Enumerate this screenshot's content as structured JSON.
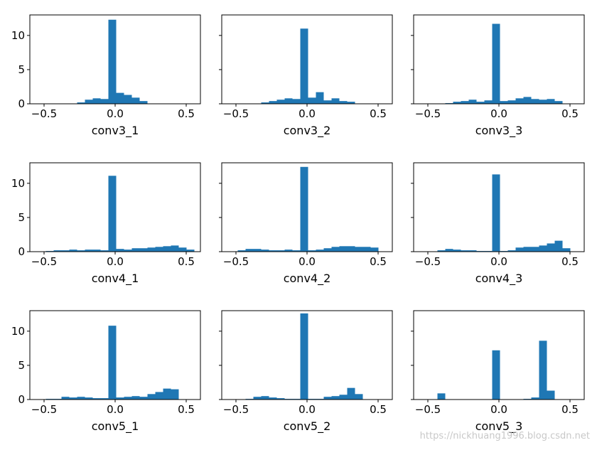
{
  "watermark": "https://nickhuang1996.blog.csdn.net",
  "chart_data": [
    {
      "type": "bar",
      "xlabel": "conv3_1",
      "xlim": [
        -0.6,
        0.6
      ],
      "ylim": [
        0,
        13
      ],
      "xticks": [
        -0.5,
        0.0,
        0.5
      ],
      "xtick_labels": [
        "−0.5",
        "0.0",
        "0.5"
      ],
      "yticks": [
        0,
        5,
        10
      ],
      "ytick_labels": [
        "0",
        "5",
        "10"
      ],
      "bin_width": 0.055,
      "color": "#1f77b4",
      "centers": [
        -0.24,
        -0.185,
        -0.13,
        -0.075,
        -0.02,
        0.035,
        0.09,
        0.145,
        0.2
      ],
      "values": [
        0.2,
        0.6,
        0.8,
        0.7,
        12.3,
        1.6,
        1.3,
        0.9,
        0.4
      ]
    },
    {
      "type": "bar",
      "xlabel": "conv3_2",
      "xlim": [
        -0.6,
        0.6
      ],
      "ylim": [
        0,
        13
      ],
      "xticks": [
        -0.5,
        0.0,
        0.5
      ],
      "xtick_labels": [
        "−0.5",
        "0.0",
        "0.5"
      ],
      "yticks": [
        0,
        5,
        10
      ],
      "ytick_labels": [
        "",
        "",
        ""
      ],
      "bin_width": 0.055,
      "color": "#1f77b4",
      "centers": [
        -0.295,
        -0.24,
        -0.185,
        -0.13,
        -0.075,
        -0.02,
        0.035,
        0.09,
        0.145,
        0.2,
        0.255,
        0.31
      ],
      "values": [
        0.2,
        0.4,
        0.6,
        0.8,
        0.7,
        11.0,
        0.9,
        1.7,
        0.5,
        0.8,
        0.4,
        0.3
      ]
    },
    {
      "type": "bar",
      "xlabel": "conv3_3",
      "xlim": [
        -0.6,
        0.6
      ],
      "ylim": [
        0,
        13
      ],
      "xticks": [
        -0.5,
        0.0,
        0.5
      ],
      "xtick_labels": [
        "−0.5",
        "0.0",
        "0.5"
      ],
      "yticks": [
        0,
        5,
        10
      ],
      "ytick_labels": [
        "",
        "",
        ""
      ],
      "bin_width": 0.055,
      "color": "#1f77b4",
      "centers": [
        -0.35,
        -0.295,
        -0.24,
        -0.185,
        -0.13,
        -0.075,
        -0.02,
        0.035,
        0.09,
        0.145,
        0.2,
        0.255,
        0.31,
        0.365,
        0.42
      ],
      "values": [
        0.1,
        0.3,
        0.4,
        0.6,
        0.3,
        0.5,
        11.7,
        0.4,
        0.5,
        0.8,
        1.0,
        0.7,
        0.6,
        0.7,
        0.4
      ]
    },
    {
      "type": "bar",
      "xlabel": "conv4_1",
      "xlim": [
        -0.6,
        0.6
      ],
      "ylim": [
        0,
        13
      ],
      "xticks": [
        -0.5,
        0.0,
        0.5
      ],
      "xtick_labels": [
        "−0.5",
        "0.0",
        "0.5"
      ],
      "yticks": [
        0,
        5,
        10
      ],
      "ytick_labels": [
        "0",
        "5",
        "10"
      ],
      "bin_width": 0.055,
      "color": "#1f77b4",
      "centers": [
        -0.46,
        -0.405,
        -0.35,
        -0.295,
        -0.24,
        -0.185,
        -0.13,
        -0.075,
        -0.02,
        0.035,
        0.09,
        0.145,
        0.2,
        0.255,
        0.31,
        0.365,
        0.42,
        0.475,
        0.53
      ],
      "values": [
        0.1,
        0.2,
        0.2,
        0.3,
        0.2,
        0.3,
        0.3,
        0.2,
        11.1,
        0.4,
        0.3,
        0.5,
        0.5,
        0.6,
        0.7,
        0.8,
        0.9,
        0.6,
        0.3
      ]
    },
    {
      "type": "bar",
      "xlabel": "conv4_2",
      "xlim": [
        -0.6,
        0.6
      ],
      "ylim": [
        0,
        13
      ],
      "xticks": [
        -0.5,
        0.0,
        0.5
      ],
      "xtick_labels": [
        "−0.5",
        "0.0",
        "0.5"
      ],
      "yticks": [
        0,
        5,
        10
      ],
      "ytick_labels": [
        "",
        "",
        ""
      ],
      "bin_width": 0.055,
      "color": "#1f77b4",
      "centers": [
        -0.46,
        -0.405,
        -0.35,
        -0.295,
        -0.24,
        -0.185,
        -0.13,
        -0.075,
        -0.02,
        0.035,
        0.09,
        0.145,
        0.2,
        0.255,
        0.31,
        0.365,
        0.42,
        0.475
      ],
      "values": [
        0.2,
        0.4,
        0.4,
        0.3,
        0.2,
        0.2,
        0.3,
        0.2,
        12.4,
        0.2,
        0.3,
        0.5,
        0.7,
        0.8,
        0.8,
        0.7,
        0.7,
        0.6
      ]
    },
    {
      "type": "bar",
      "xlabel": "conv4_3",
      "xlim": [
        -0.6,
        0.6
      ],
      "ylim": [
        0,
        13
      ],
      "xticks": [
        -0.5,
        0.0,
        0.5
      ],
      "xtick_labels": [
        "−0.5",
        "0.0",
        "0.5"
      ],
      "yticks": [
        0,
        5,
        10
      ],
      "ytick_labels": [
        "",
        "",
        ""
      ],
      "bin_width": 0.055,
      "color": "#1f77b4",
      "centers": [
        -0.405,
        -0.35,
        -0.295,
        -0.24,
        -0.185,
        -0.13,
        -0.075,
        -0.02,
        0.035,
        0.09,
        0.145,
        0.2,
        0.255,
        0.31,
        0.365,
        0.42,
        0.475
      ],
      "values": [
        0.2,
        0.4,
        0.3,
        0.2,
        0.2,
        0.1,
        0.1,
        11.3,
        0.1,
        0.2,
        0.6,
        0.7,
        0.7,
        0.9,
        1.2,
        1.6,
        0.5
      ]
    },
    {
      "type": "bar",
      "xlabel": "conv5_1",
      "xlim": [
        -0.6,
        0.6
      ],
      "ylim": [
        0,
        13
      ],
      "xticks": [
        -0.5,
        0.0,
        0.5
      ],
      "xtick_labels": [
        "−0.5",
        "0.0",
        "0.5"
      ],
      "yticks": [
        0,
        5,
        10
      ],
      "ytick_labels": [
        "0",
        "5",
        "10"
      ],
      "bin_width": 0.055,
      "color": "#1f77b4",
      "centers": [
        -0.46,
        -0.405,
        -0.35,
        -0.295,
        -0.24,
        -0.185,
        -0.13,
        -0.075,
        -0.02,
        0.035,
        0.09,
        0.145,
        0.2,
        0.255,
        0.31,
        0.365,
        0.42
      ],
      "values": [
        0.1,
        0.1,
        0.4,
        0.3,
        0.4,
        0.3,
        0.2,
        0.2,
        10.8,
        0.3,
        0.4,
        0.5,
        0.4,
        0.8,
        1.1,
        1.6,
        1.5
      ]
    },
    {
      "type": "bar",
      "xlabel": "conv5_2",
      "xlim": [
        -0.6,
        0.6
      ],
      "ylim": [
        0,
        13
      ],
      "xticks": [
        -0.5,
        0.0,
        0.5
      ],
      "xtick_labels": [
        "−0.5",
        "0.0",
        "0.5"
      ],
      "yticks": [
        0,
        5,
        10
      ],
      "ytick_labels": [
        "",
        "",
        ""
      ],
      "bin_width": 0.055,
      "color": "#1f77b4",
      "centers": [
        -0.405,
        -0.35,
        -0.295,
        -0.24,
        -0.185,
        -0.13,
        -0.075,
        -0.02,
        0.035,
        0.09,
        0.145,
        0.2,
        0.255,
        0.31,
        0.365
      ],
      "values": [
        0.1,
        0.4,
        0.5,
        0.3,
        0.2,
        0.1,
        0.1,
        12.6,
        0.1,
        0.1,
        0.4,
        0.5,
        0.7,
        1.7,
        0.8
      ]
    },
    {
      "type": "bar",
      "xlabel": "conv5_3",
      "xlim": [
        -0.6,
        0.6
      ],
      "ylim": [
        0,
        13
      ],
      "xticks": [
        -0.5,
        0.0,
        0.5
      ],
      "xtick_labels": [
        "−0.5",
        "0.0",
        "0.5"
      ],
      "yticks": [
        0,
        5,
        10
      ],
      "ytick_labels": [
        "",
        "",
        ""
      ],
      "bin_width": 0.055,
      "color": "#1f77b4",
      "centers": [
        -0.405,
        -0.02,
        0.2,
        0.255,
        0.31,
        0.365
      ],
      "values": [
        0.9,
        7.2,
        0.1,
        0.3,
        8.6,
        1.3
      ]
    }
  ]
}
